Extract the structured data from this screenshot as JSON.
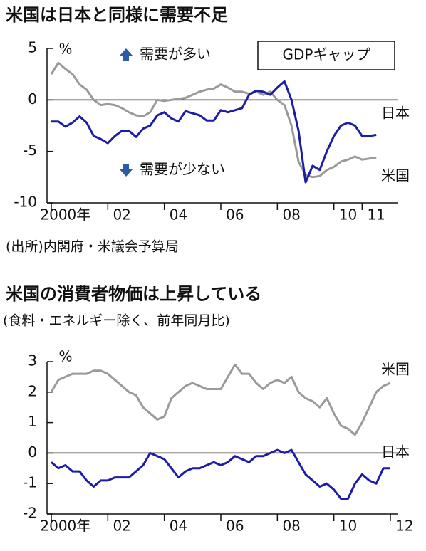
{
  "chart_data": [
    {
      "type": "line",
      "title": "米国は日本と同様に需要不足",
      "unit": "%",
      "annotations": [
        "需要が多い",
        "需要が少ない",
        "GDPギャップ"
      ],
      "source": "(出所)内閣府・米議会予算局",
      "x": [
        2000,
        2000.25,
        2000.5,
        2000.75,
        2001,
        2001.25,
        2001.5,
        2001.75,
        2002,
        2002.25,
        2002.5,
        2002.75,
        2003,
        2003.25,
        2003.5,
        2003.75,
        2004,
        2004.25,
        2004.5,
        2004.75,
        2005,
        2005.25,
        2005.5,
        2005.75,
        2006,
        2006.25,
        2006.5,
        2006.75,
        2007,
        2007.25,
        2007.5,
        2007.75,
        2008,
        2008.25,
        2008.5,
        2008.75,
        2009,
        2009.25,
        2009.5,
        2009.75,
        2010,
        2010.25,
        2010.5,
        2010.75,
        2011,
        2011.25,
        2011.5
      ],
      "series": [
        {
          "name": "米国",
          "color": "#9a9a9a",
          "values": [
            2.5,
            3.6,
            3.0,
            2.5,
            1.5,
            1.0,
            0.0,
            -0.5,
            -0.4,
            -0.5,
            -0.8,
            -1.2,
            -1.5,
            -1.6,
            -1.2,
            0.0,
            -0.1,
            0.0,
            0.1,
            0.2,
            0.5,
            0.8,
            1.0,
            1.1,
            1.5,
            1.2,
            0.8,
            0.8,
            0.6,
            0.8,
            0.5,
            0.8,
            0.0,
            -0.5,
            -2.5,
            -6.0,
            -7.3,
            -7.5,
            -7.4,
            -6.8,
            -6.5,
            -6.0,
            -5.8,
            -5.5,
            -5.8,
            -5.7,
            -5.6
          ]
        },
        {
          "name": "日本",
          "color": "#1c1ca8",
          "values": [
            -2.1,
            -2.1,
            -2.6,
            -2.2,
            -1.6,
            -2.2,
            -3.5,
            -3.8,
            -4.2,
            -3.5,
            -3.0,
            -3.0,
            -3.6,
            -2.8,
            -2.5,
            -1.5,
            -1.2,
            -1.8,
            -2.1,
            -1.1,
            -1.3,
            -1.5,
            -2.0,
            -2.0,
            -1.0,
            -1.2,
            -1.0,
            -0.8,
            0.5,
            0.9,
            0.8,
            0.5,
            1.2,
            1.8,
            0.0,
            -3.0,
            -8.0,
            -6.4,
            -6.8,
            -5.0,
            -3.5,
            -2.5,
            -2.2,
            -2.5,
            -3.5,
            -3.5,
            -3.4
          ]
        }
      ],
      "xlim": [
        2000,
        2012
      ],
      "xticks": [
        {
          "value": 2000,
          "label": "2000年"
        },
        {
          "value": 2002,
          "label": "02"
        },
        {
          "value": 2004,
          "label": "04"
        },
        {
          "value": 2006,
          "label": "06"
        },
        {
          "value": 2008,
          "label": "08"
        },
        {
          "value": 2010,
          "label": "10"
        },
        {
          "value": 2011,
          "label": "11"
        }
      ],
      "ylim": [
        -10,
        5
      ],
      "yticks": [
        5,
        0,
        -5,
        -10
      ],
      "hline": 0
    },
    {
      "type": "line",
      "title": "米国の消費者物価は上昇している",
      "subtitle": "(食料・エネルギー除く、前年同月比)",
      "unit": "%",
      "x": [
        2000,
        2000.25,
        2000.5,
        2000.75,
        2001,
        2001.25,
        2001.5,
        2001.75,
        2002,
        2002.25,
        2002.5,
        2002.75,
        2003,
        2003.25,
        2003.5,
        2003.75,
        2004,
        2004.25,
        2004.5,
        2004.75,
        2005,
        2005.25,
        2005.5,
        2005.75,
        2006,
        2006.25,
        2006.5,
        2006.75,
        2007,
        2007.25,
        2007.5,
        2007.75,
        2008,
        2008.25,
        2008.5,
        2008.75,
        2009,
        2009.25,
        2009.5,
        2009.75,
        2010,
        2010.25,
        2010.5,
        2010.75,
        2011,
        2011.25,
        2011.5,
        2011.75,
        2012
      ],
      "series": [
        {
          "name": "米国",
          "color": "#9a9a9a",
          "values": [
            2.0,
            2.4,
            2.5,
            2.6,
            2.6,
            2.6,
            2.7,
            2.7,
            2.6,
            2.4,
            2.2,
            2.0,
            1.9,
            1.5,
            1.3,
            1.1,
            1.2,
            1.8,
            2.0,
            2.2,
            2.3,
            2.2,
            2.1,
            2.1,
            2.1,
            2.5,
            2.9,
            2.6,
            2.6,
            2.3,
            2.1,
            2.3,
            2.4,
            2.3,
            2.5,
            2.0,
            1.8,
            1.7,
            1.5,
            1.8,
            1.3,
            0.9,
            0.8,
            0.6,
            1.0,
            1.5,
            2.0,
            2.2,
            2.3
          ]
        },
        {
          "name": "日本",
          "color": "#1c1ca8",
          "values": [
            -0.3,
            -0.5,
            -0.4,
            -0.6,
            -0.6,
            -0.9,
            -1.1,
            -0.9,
            -0.9,
            -0.8,
            -0.8,
            -0.8,
            -0.6,
            -0.4,
            0.0,
            -0.1,
            -0.2,
            -0.5,
            -0.8,
            -0.6,
            -0.5,
            -0.5,
            -0.4,
            -0.3,
            -0.4,
            -0.3,
            -0.1,
            -0.2,
            -0.3,
            -0.1,
            -0.1,
            0.0,
            0.1,
            0.0,
            0.1,
            -0.3,
            -0.7,
            -0.9,
            -1.1,
            -1.0,
            -1.2,
            -1.5,
            -1.5,
            -1.0,
            -0.7,
            -0.9,
            -1.0,
            -0.5,
            -0.5
          ]
        }
      ],
      "xlim": [
        2000,
        2012
      ],
      "xticks": [
        {
          "value": 2000,
          "label": "2000年"
        },
        {
          "value": 2002,
          "label": "02"
        },
        {
          "value": 2004,
          "label": "04"
        },
        {
          "value": 2006,
          "label": "06"
        },
        {
          "value": 2008,
          "label": "08"
        },
        {
          "value": 2010,
          "label": "10"
        },
        {
          "value": 2012,
          "label": "12"
        }
      ],
      "ylim": [
        -2,
        3
      ],
      "yticks": [
        3,
        2,
        1,
        0,
        -1,
        -2
      ],
      "hline": 0
    }
  ]
}
